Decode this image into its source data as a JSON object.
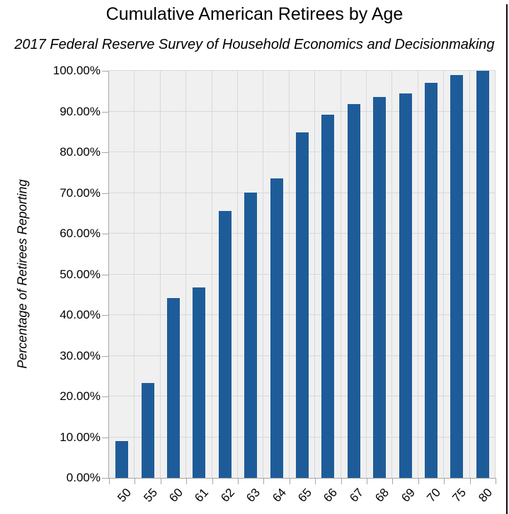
{
  "chart_data": {
    "type": "bar",
    "title": "Cumulative American Retirees by Age",
    "subtitle": "2017 Federal Reserve Survey of Household Economics and Decisionmaking",
    "xlabel": "",
    "ylabel": "Percentage of Retirees Reporting",
    "categories": [
      "50",
      "55",
      "60",
      "61",
      "62",
      "63",
      "64",
      "65",
      "66",
      "67",
      "68",
      "69",
      "70",
      "75",
      "80"
    ],
    "values": [
      9.0,
      23.3,
      44.2,
      46.8,
      65.5,
      70.1,
      73.5,
      84.9,
      89.2,
      91.8,
      93.5,
      94.4,
      97.0,
      99.0,
      100.0
    ],
    "ylim": [
      0,
      100
    ],
    "y_tick_step": 10,
    "y_tick_labels": [
      "0.00%",
      "10.00%",
      "20.00%",
      "30.00%",
      "40.00%",
      "50.00%",
      "60.00%",
      "70.00%",
      "80.00%",
      "90.00%",
      "100.00%"
    ],
    "grid": true,
    "legend": false,
    "colors": {
      "bar": "#1E5C99",
      "plot_bg": "#F0F0F0",
      "gridline": "#D8D8D8",
      "axis": "#A6A6A6",
      "text": "#000000"
    }
  }
}
